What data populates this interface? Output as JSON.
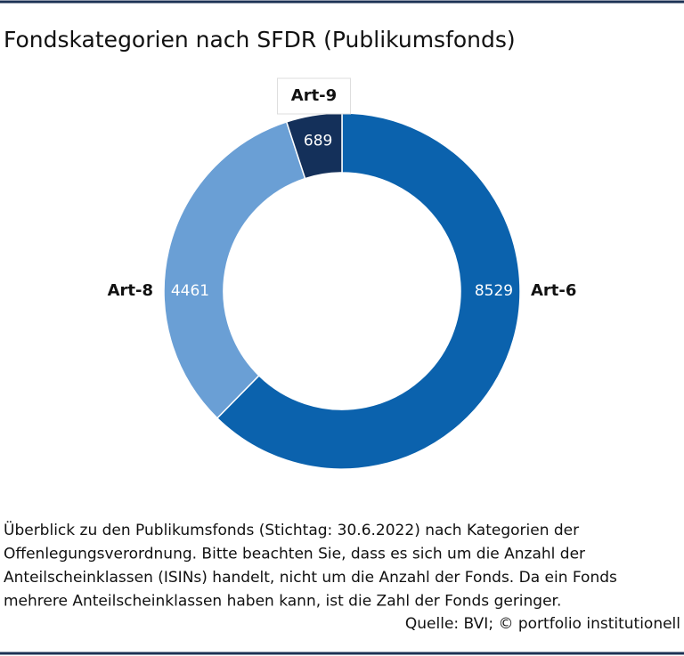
{
  "chart_data": {
    "type": "donut",
    "title": "Fondskategorien nach SFDR (Publikumsfonds)",
    "categories": [
      "Art-6",
      "Art-8",
      "Art-9"
    ],
    "values": [
      8529,
      4461,
      689
    ],
    "colors": [
      "#0b62ad",
      "#6a9fd5",
      "#14305a"
    ],
    "caption": [
      "Überblick zu den Publikumsfonds (Stichtag: 30.6.2022) nach Kategorien der",
      "Offenlegungsverordnung. Bitte beachten Sie, dass es sich um die Anzahl der",
      "Anteilscheinklassen (ISINs) handelt, nicht um die Anzahl der Fonds. Da ein Fonds",
      "mehrere Anteilscheinklassen haben kann, ist die Zahl der Fonds geringer."
    ],
    "source": "Quelle: BVI; © portfolio institutionell"
  }
}
